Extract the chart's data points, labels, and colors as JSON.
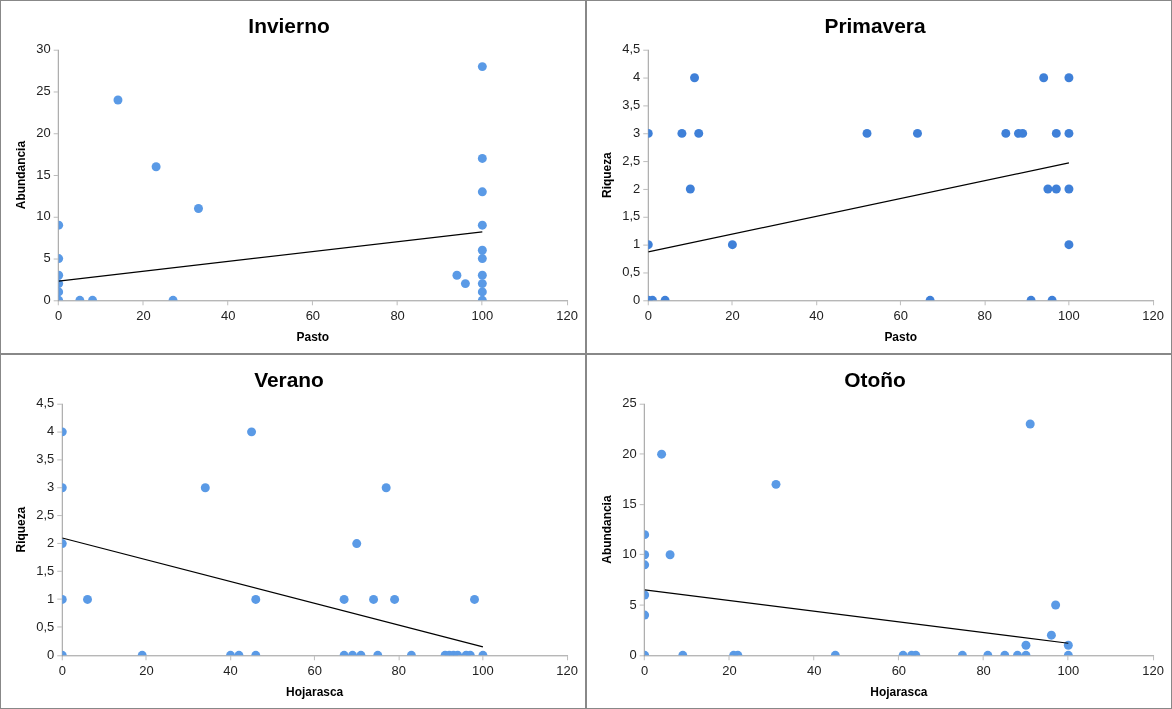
{
  "chart_data": [
    {
      "type": "scatter",
      "title": "Invierno",
      "xlabel": "Pasto",
      "ylabel": "Abundancia",
      "xlim": [
        0,
        120
      ],
      "xticks": [
        0,
        20,
        40,
        60,
        80,
        100,
        120
      ],
      "ylim": [
        0,
        30
      ],
      "yticks": [
        0,
        5,
        10,
        15,
        20,
        25,
        30
      ],
      "grid": false,
      "legend": false,
      "marker": "circle",
      "series": [
        {
          "color": "#5a9ae6",
          "x": [
            0,
            0,
            0,
            0,
            0,
            0,
            5,
            8,
            14,
            23,
            27,
            33,
            94,
            96,
            100,
            100,
            100,
            100,
            100,
            100,
            100,
            100,
            100,
            100
          ],
          "values": [
            9,
            5,
            3,
            2,
            1,
            0,
            0,
            0,
            24,
            16,
            0,
            11,
            3,
            2,
            28,
            17,
            13,
            9,
            6,
            5,
            3,
            2,
            1,
            0
          ]
        },
        {
          "type": "line",
          "color": "#000000",
          "marker": "none",
          "x": [
            0,
            100
          ],
          "values": [
            2.3,
            8.2
          ]
        }
      ]
    },
    {
      "type": "scatter",
      "title": "Primavera",
      "xlabel": "Pasto",
      "ylabel": "Riqueza",
      "xlim": [
        0,
        120
      ],
      "xticks": [
        0,
        20,
        40,
        60,
        80,
        100,
        120
      ],
      "ylim": [
        0,
        4.5
      ],
      "yticks": [
        0,
        {
          "value": 0.5,
          "label": "0,5"
        },
        1,
        {
          "value": 1.5,
          "label": "1,5"
        },
        2,
        {
          "value": 2.5,
          "label": "2,5"
        },
        3,
        {
          "value": 3.5,
          "label": "3,5"
        },
        4,
        {
          "value": 4.5,
          "label": "4,5"
        }
      ],
      "grid": false,
      "legend": false,
      "marker": "circle",
      "series": [
        {
          "color": "#3f80d8",
          "x": [
            0,
            0,
            0,
            1,
            4,
            8,
            10,
            11,
            12,
            20,
            52,
            64,
            67,
            85,
            88,
            89,
            91,
            94,
            95,
            96,
            97,
            97,
            100,
            100,
            100,
            100
          ],
          "values": [
            3,
            1,
            0,
            0,
            0,
            3,
            2,
            4,
            3,
            1,
            3,
            3,
            0,
            3,
            3,
            3,
            0,
            4,
            2,
            0,
            2,
            3,
            4,
            3,
            2,
            1
          ]
        },
        {
          "type": "line",
          "color": "#000000",
          "marker": "none",
          "x": [
            0,
            100
          ],
          "values": [
            0.87,
            2.47
          ]
        }
      ]
    },
    {
      "type": "scatter",
      "title": "Verano",
      "xlabel": "Hojarasca",
      "ylabel": "Riqueza",
      "xlim": [
        0,
        120
      ],
      "xticks": [
        0,
        20,
        40,
        60,
        80,
        100,
        120
      ],
      "ylim": [
        0,
        4.5
      ],
      "yticks": [
        0,
        {
          "value": 0.5,
          "label": "0,5"
        },
        1,
        {
          "value": 1.5,
          "label": "1,5"
        },
        2,
        {
          "value": 2.5,
          "label": "2,5"
        },
        3,
        {
          "value": 3.5,
          "label": "3,5"
        },
        4,
        {
          "value": 4.5,
          "label": "4,5"
        }
      ],
      "grid": false,
      "legend": false,
      "marker": "circle",
      "series": [
        {
          "color": "#5a9ae6",
          "x": [
            0,
            0,
            0,
            0,
            0,
            6,
            19,
            34,
            40,
            42,
            45,
            46,
            46,
            67,
            67,
            69,
            70,
            71,
            74,
            75,
            77,
            79,
            83,
            91,
            92,
            93,
            94,
            96,
            97,
            98,
            100
          ],
          "values": [
            4,
            3,
            2,
            1,
            0,
            1,
            0,
            3,
            0,
            0,
            4,
            1,
            0,
            1,
            0,
            0,
            2,
            0,
            1,
            0,
            3,
            1,
            0,
            0,
            0,
            0,
            0,
            0,
            0,
            1,
            0
          ]
        },
        {
          "type": "line",
          "color": "#000000",
          "marker": "none",
          "x": [
            0,
            100
          ],
          "values": [
            2.1,
            0.15
          ]
        }
      ]
    },
    {
      "type": "scatter",
      "title": "Otoño",
      "xlabel": "Hojarasca",
      "ylabel": "Abundancia",
      "xlim": [
        0,
        120
      ],
      "xticks": [
        0,
        20,
        40,
        60,
        80,
        100,
        120
      ],
      "ylim": [
        0,
        25
      ],
      "yticks": [
        0,
        5,
        10,
        15,
        20,
        25
      ],
      "grid": false,
      "legend": false,
      "marker": "circle",
      "series": [
        {
          "color": "#5a9ae6",
          "x": [
            0,
            0,
            0,
            0,
            0,
            0,
            4,
            6,
            9,
            21,
            22,
            31,
            45,
            61,
            63,
            64,
            75,
            81,
            85,
            88,
            90,
            90,
            91,
            96,
            97,
            100,
            100
          ],
          "values": [
            12,
            10,
            9,
            6,
            4,
            0,
            20,
            10,
            0,
            0,
            0,
            17,
            0,
            0,
            0,
            0,
            0,
            0,
            0,
            0,
            1,
            0,
            23,
            2,
            5,
            1,
            0
          ]
        },
        {
          "type": "line",
          "color": "#000000",
          "marker": "none",
          "x": [
            0,
            100
          ],
          "values": [
            6.5,
            1.2
          ]
        }
      ]
    }
  ]
}
